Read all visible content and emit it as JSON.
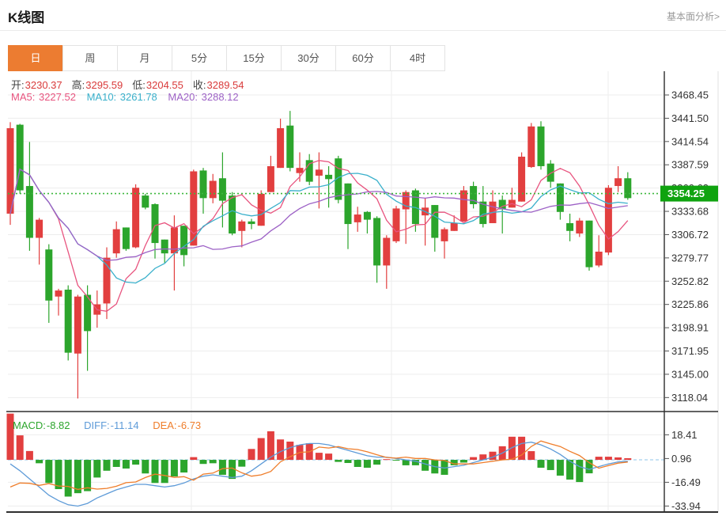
{
  "header": {
    "title": "K线图",
    "link": "基本面分析>"
  },
  "tabs": [
    {
      "key": "day",
      "label": "日",
      "active": true
    },
    {
      "key": "week",
      "label": "周",
      "active": false
    },
    {
      "key": "month",
      "label": "月",
      "active": false
    },
    {
      "key": "5m",
      "label": "5分",
      "active": false
    },
    {
      "key": "15m",
      "label": "15分",
      "active": false
    },
    {
      "key": "30m",
      "label": "30分",
      "active": false
    },
    {
      "key": "60m",
      "label": "60分",
      "active": false
    },
    {
      "key": "4h",
      "label": "4时",
      "active": false
    }
  ],
  "ohlc": {
    "open_label": "开:",
    "open": "3230.37",
    "high_label": "高:",
    "high": "3295.59",
    "low_label": "低:",
    "low": "3204.55",
    "close_label": "收:",
    "close": "3289.54"
  },
  "ma_info": {
    "ma5_label": "MA5:",
    "ma5": "3227.52",
    "ma10_label": "MA10:",
    "ma10": "3261.78",
    "ma20_label": "MA20:",
    "ma20": "3288.12"
  },
  "macd_info": {
    "macd_label": "MACD:",
    "macd": "-8.82",
    "diff_label": "DIFF:",
    "diff": "-11.14",
    "dea_label": "DEA:",
    "dea": "-6.73"
  },
  "price_badge": "3354.25",
  "colors": {
    "up": "#2ca52c",
    "down": "#e23f3f",
    "ma5": "#e8547f",
    "ma10": "#3ab0cb",
    "ma20": "#9d62c6",
    "diff": "#5e9bd8",
    "dea": "#ef7d2a",
    "tab_accent": "#ec7c31",
    "badge": "#0fa30f",
    "price_line": "#3db83d",
    "grid": "#ededed",
    "axis_text": "#333333",
    "dark_border": "#2e2e2e",
    "zero_dash": "#8cc4ea",
    "ohlc_value": "#d93a3a"
  },
  "chart_data": {
    "type": "candlestick",
    "title": "K线图 daily candles with MA5/MA10/MA20 and MACD",
    "legend": [
      "MA5",
      "MA10",
      "MA20",
      "MACD",
      "DIFF",
      "DEA"
    ],
    "grid": true,
    "current_price": 3354.25,
    "price_axis": {
      "tick_labels": [
        "3468.45",
        "3441.50",
        "3414.54",
        "3387.59",
        "3360.63",
        "3333.68",
        "3306.72",
        "3279.77",
        "3252.82",
        "3225.86",
        "3198.91",
        "3171.95",
        "3145.00",
        "3118.04"
      ],
      "range": [
        3118.04,
        3468.45
      ]
    },
    "candles_ohlc": [
      [
        3430,
        3437,
        3318,
        3331
      ],
      [
        3358,
        3435,
        3354,
        3434
      ],
      [
        3303,
        3414,
        3288,
        3363
      ],
      [
        3324,
        3326,
        3272,
        3303
      ],
      [
        3230.37,
        3295.59,
        3204.55,
        3289.54
      ],
      [
        3242,
        3244,
        3213,
        3235
      ],
      [
        3170,
        3248,
        3161,
        3243
      ],
      [
        3235,
        3237,
        3117,
        3169
      ],
      [
        3195,
        3248,
        3149,
        3237
      ],
      [
        3226,
        3242,
        3199,
        3214
      ],
      [
        3280,
        3292,
        3209,
        3227
      ],
      [
        3313,
        3322,
        3280,
        3285
      ],
      [
        3290,
        3315,
        3288,
        3315
      ],
      [
        3361,
        3365,
        3291,
        3292
      ],
      [
        3338,
        3354,
        3336,
        3352
      ],
      [
        3297,
        3343,
        3279,
        3342
      ],
      [
        3285,
        3301,
        3274,
        3301
      ],
      [
        3315,
        3329,
        3242,
        3285
      ],
      [
        3283,
        3317,
        3270,
        3317
      ],
      [
        3380,
        3382,
        3294,
        3294
      ],
      [
        3349,
        3384,
        3331,
        3381
      ],
      [
        3369,
        3377,
        3343,
        3349
      ],
      [
        3346,
        3402,
        3315,
        3372
      ],
      [
        3308,
        3356,
        3306,
        3352
      ],
      [
        3322,
        3324,
        3292,
        3311
      ],
      [
        3319,
        3325,
        3313,
        3322
      ],
      [
        3354,
        3358,
        3317,
        3317
      ],
      [
        3386,
        3398,
        3356,
        3356
      ],
      [
        3430,
        3441,
        3384,
        3384
      ],
      [
        3384,
        3450,
        3380,
        3433
      ],
      [
        3384,
        3402,
        3368,
        3378
      ],
      [
        3368,
        3400,
        3364,
        3393
      ],
      [
        3382,
        3402,
        3337,
        3375
      ],
      [
        3371,
        3386,
        3338,
        3376
      ],
      [
        3347,
        3398,
        3343,
        3395
      ],
      [
        3319,
        3366,
        3290,
        3366
      ],
      [
        3330,
        3339,
        3310,
        3321
      ],
      [
        3324,
        3334,
        3308,
        3333
      ],
      [
        3271,
        3328,
        3251,
        3326
      ],
      [
        3303,
        3306,
        3244,
        3271
      ],
      [
        3337,
        3340,
        3297,
        3299
      ],
      [
        3356,
        3358,
        3296,
        3336
      ],
      [
        3319,
        3360,
        3310,
        3358
      ],
      [
        3338,
        3349,
        3294,
        3329
      ],
      [
        3303,
        3341,
        3287,
        3341
      ],
      [
        3313,
        3315,
        3279,
        3299
      ],
      [
        3320,
        3329,
        3311,
        3311
      ],
      [
        3358,
        3363,
        3322,
        3322
      ],
      [
        3342,
        3368,
        3337,
        3363
      ],
      [
        3319,
        3363,
        3315,
        3345
      ],
      [
        3345,
        3358,
        3320,
        3320
      ],
      [
        3336,
        3352,
        3308,
        3347
      ],
      [
        3347,
        3361,
        3338,
        3338
      ],
      [
        3397,
        3402,
        3345,
        3345
      ],
      [
        3432,
        3436,
        3384,
        3385
      ],
      [
        3386,
        3438,
        3382,
        3432
      ],
      [
        3368,
        3393,
        3361,
        3389
      ],
      [
        3333,
        3366,
        3324,
        3366
      ],
      [
        3311,
        3331,
        3299,
        3320
      ],
      [
        3323,
        3326,
        3304,
        3308
      ],
      [
        3269,
        3323,
        3265,
        3323
      ],
      [
        3287,
        3306,
        3269,
        3271
      ],
      [
        3361,
        3364,
        3283,
        3286
      ],
      [
        3372,
        3386,
        3356,
        3363
      ],
      [
        3349,
        3379,
        3347,
        3372
      ]
    ],
    "ma_periods": [
      5,
      10,
      20
    ],
    "macd": {
      "tick_labels": [
        "18.41",
        "0.96",
        "-16.49",
        "-33.94"
      ],
      "histogram": [
        34,
        18,
        6.5,
        -2.5,
        -17,
        -21.5,
        -27,
        -24.5,
        -23,
        -13,
        -8,
        -5.2,
        -6.4,
        -3.5,
        -10,
        -17,
        -17,
        -12.2,
        -9.3,
        2,
        -3,
        -2.5,
        -11,
        -14,
        -5,
        8,
        16,
        21,
        15,
        13.4,
        11,
        12.2,
        5.2,
        4.6,
        -1.5,
        -2.3,
        -5.2,
        -5.8,
        -3.5,
        0.5,
        -0.5,
        -4,
        -4,
        -8,
        -10,
        -11,
        -4,
        -2,
        2,
        4,
        6,
        10,
        17,
        17,
        6.4,
        -5.8,
        -7.5,
        -11.6,
        -14.5,
        -16.3,
        -9.9,
        2.3,
        2.3,
        1.8,
        1.2
      ],
      "diff": [
        -3,
        -8,
        -14,
        -20,
        -26,
        -30,
        -33,
        -34,
        -32,
        -28,
        -25,
        -22,
        -20,
        -18,
        -18,
        -19,
        -20,
        -19,
        -17,
        -14,
        -12,
        -11,
        -12,
        -13,
        -12,
        -8,
        -3,
        2,
        6,
        9,
        11,
        12,
        12,
        11,
        9,
        7,
        5,
        3,
        2,
        2,
        1,
        0,
        -1,
        -3,
        -5,
        -6,
        -5,
        -4,
        -2,
        0,
        2,
        5,
        9,
        12,
        13,
        11,
        8,
        4,
        -1,
        -5,
        -7,
        -5,
        -3,
        -1.5,
        -1
      ]
    }
  }
}
